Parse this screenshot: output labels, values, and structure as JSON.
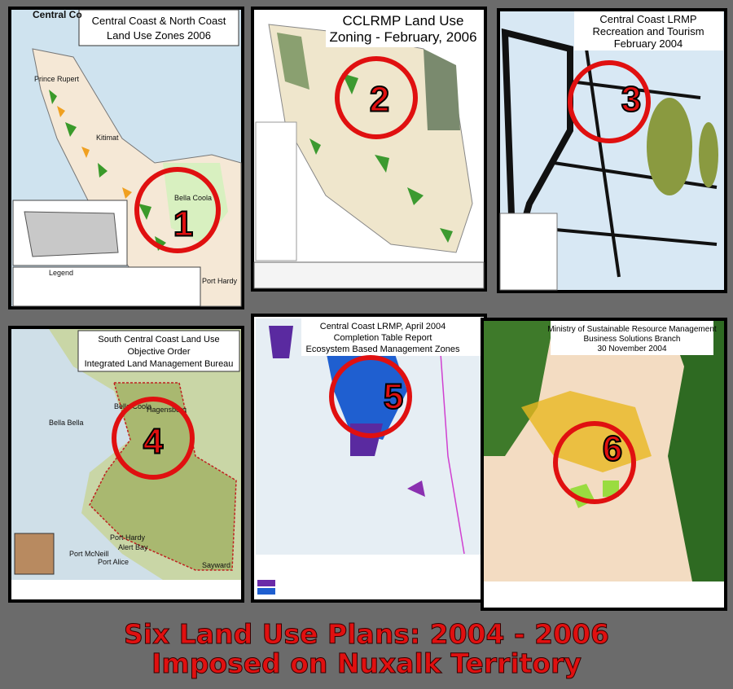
{
  "panels": [
    {
      "title": [
        "Central Coast & North Coast",
        "Land Use Zones 2006"
      ],
      "number": "1",
      "labels": [
        "Central Co",
        "Prince Rupert",
        "Kitimat",
        "Bella Coola",
        "Port Hardy",
        "Legend"
      ]
    },
    {
      "title": [
        "CCLRMP Land Use",
        "Zoning - February, 2006"
      ],
      "number": "2",
      "labels": []
    },
    {
      "title": [
        "Central Coast LRMP",
        "Recreation and Tourism",
        "February 2004"
      ],
      "number": "3",
      "labels": []
    },
    {
      "title": [
        "South Central Coast Land Use",
        "Objective Order",
        "Integrated Land Management Bureau"
      ],
      "number": "4",
      "labels": [
        "Bella Coola",
        "Hagensborg",
        "Bella Bella",
        "Port Hardy",
        "Port McNeill",
        "Alert Bay",
        "Port Alice",
        "Sayward"
      ]
    },
    {
      "title": [
        "Central Coast LRMP, April 2004",
        "Completion Table Report",
        "Ecosystem Based Management Zones"
      ],
      "number": "5",
      "labels": []
    },
    {
      "title": [
        "Ministry of Sustainable Resource Management",
        "Business Solutions Branch",
        "30 November 2004"
      ],
      "number": "6",
      "labels": []
    }
  ],
  "caption": [
    "Six Land Use Plans: 2004 - 2006",
    "Imposed on  Nuxalk Territory"
  ]
}
